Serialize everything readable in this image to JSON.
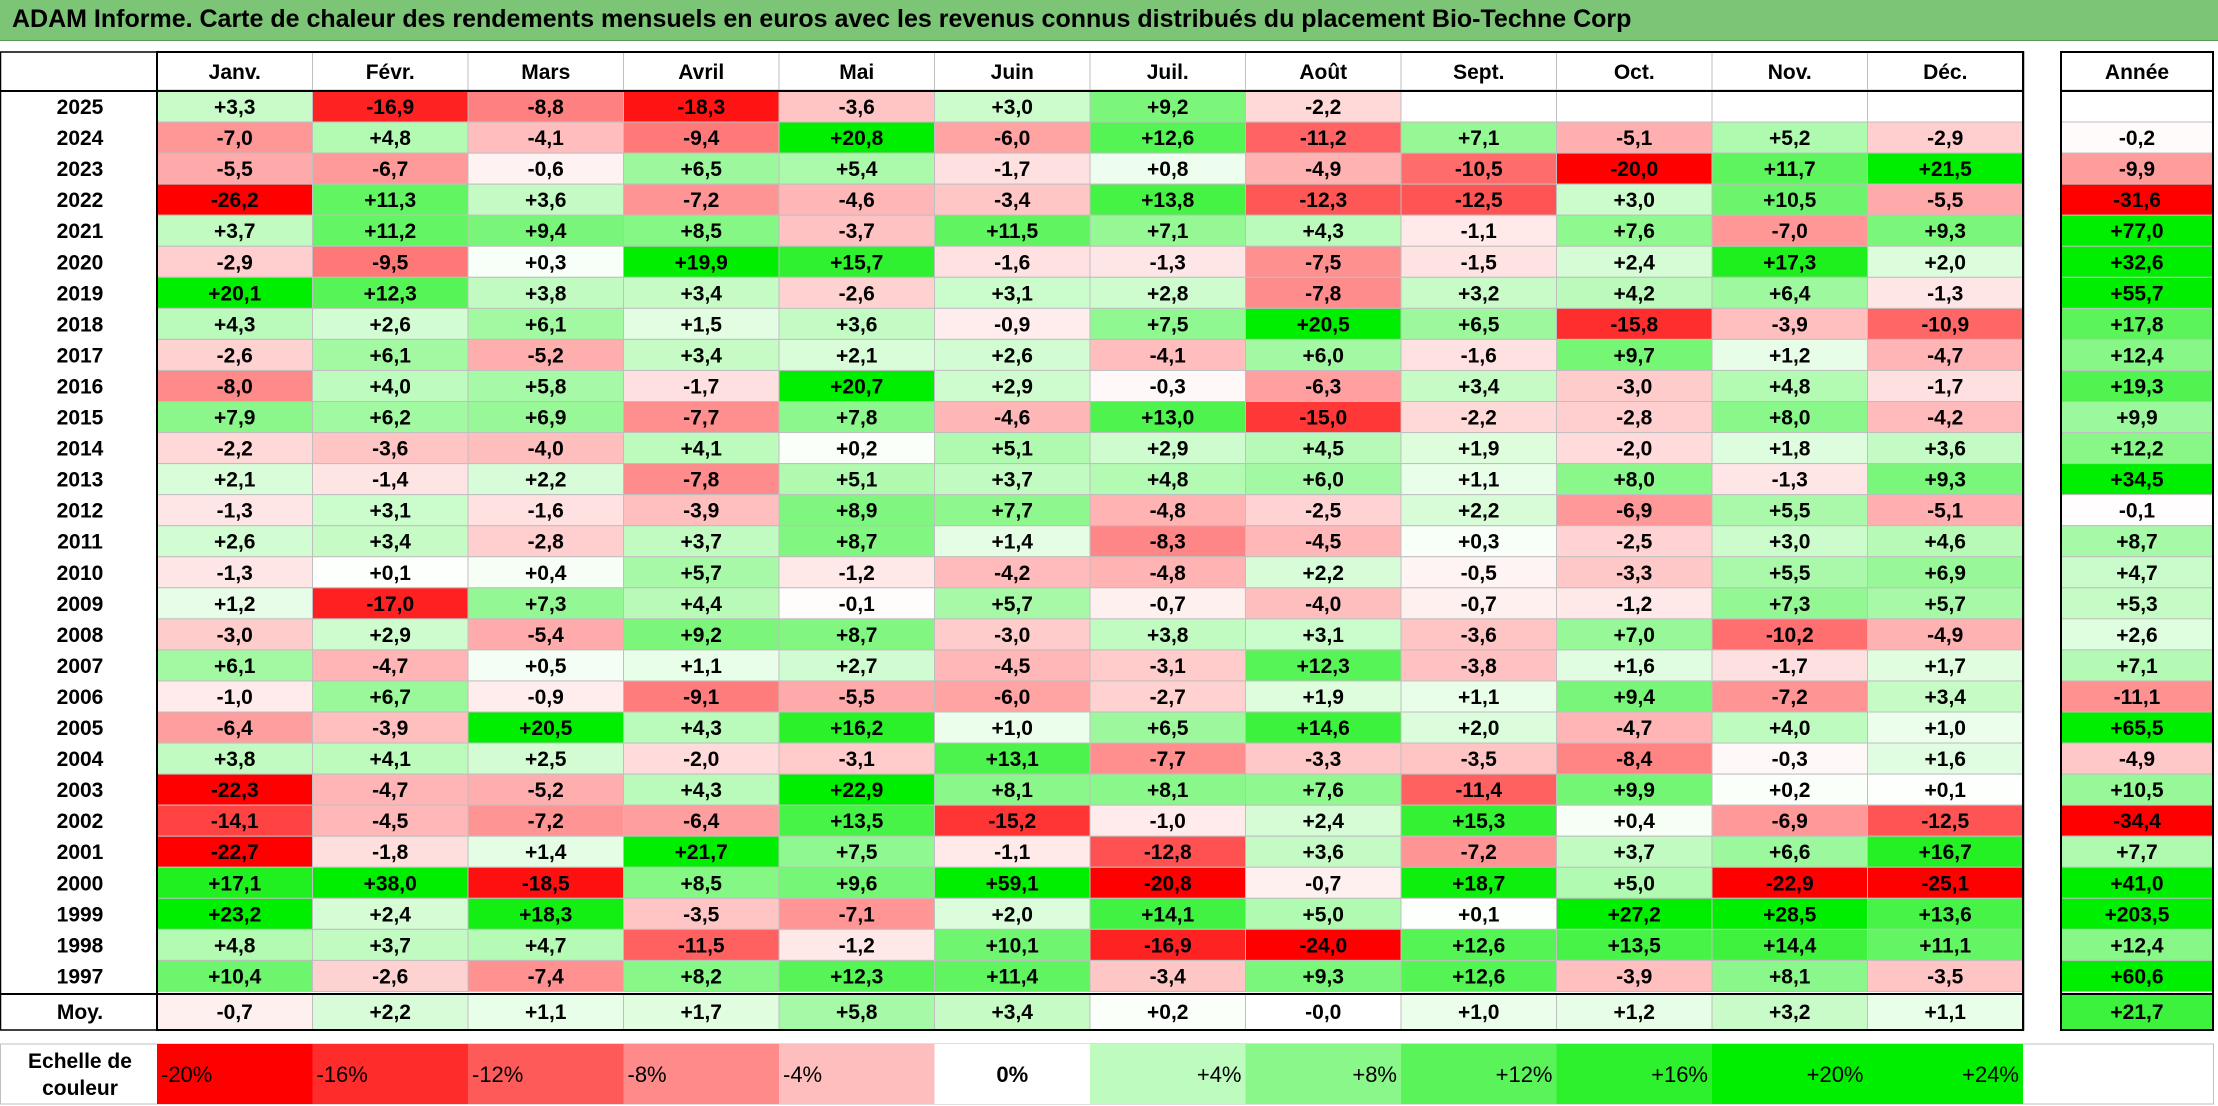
{
  "title": "ADAM Informe. Carte de chaleur des rendements mensuels en euros avec les revenus connus distribués du placement Bio-Techne Corp",
  "chart_data": {
    "type": "heatmap",
    "title": "ADAM Informe. Carte de chaleur des rendements mensuels en euros avec les revenus connus distribués du placement Bio-Techne Corp",
    "months": [
      "Janv.",
      "Févr.",
      "Mars",
      "Avril",
      "Mai",
      "Juin",
      "Juil.",
      "Août",
      "Sept.",
      "Oct.",
      "Nov.",
      "Déc."
    ],
    "annual_header": "Année",
    "rows": [
      {
        "year": "2025",
        "values": [
          3.3,
          -16.9,
          -8.8,
          -18.3,
          -3.6,
          3.0,
          9.2,
          -2.2,
          null,
          null,
          null,
          null
        ],
        "annual": null
      },
      {
        "year": "2024",
        "values": [
          -7.0,
          4.8,
          -4.1,
          -9.4,
          20.8,
          -6.0,
          12.6,
          -11.2,
          7.1,
          -5.1,
          5.2,
          -2.9
        ],
        "annual": -0.2
      },
      {
        "year": "2023",
        "values": [
          -5.5,
          -6.7,
          -0.6,
          6.5,
          5.4,
          -1.7,
          0.8,
          -4.9,
          -10.5,
          -20.0,
          11.7,
          21.5
        ],
        "annual": -9.9
      },
      {
        "year": "2022",
        "values": [
          -26.2,
          11.3,
          3.6,
          -7.2,
          -4.6,
          -3.4,
          13.8,
          -12.3,
          -12.5,
          3.0,
          10.5,
          -5.5
        ],
        "annual": -31.6
      },
      {
        "year": "2021",
        "values": [
          3.7,
          11.2,
          9.4,
          8.5,
          -3.7,
          11.5,
          7.1,
          4.3,
          -1.1,
          7.6,
          -7.0,
          9.3
        ],
        "annual": 77.0
      },
      {
        "year": "2020",
        "values": [
          -2.9,
          -9.5,
          0.3,
          19.9,
          15.7,
          -1.6,
          -1.3,
          -7.5,
          -1.5,
          2.4,
          17.3,
          2.0
        ],
        "annual": 32.6
      },
      {
        "year": "2019",
        "values": [
          20.1,
          12.3,
          3.8,
          3.4,
          -2.6,
          3.1,
          2.8,
          -7.8,
          3.2,
          4.2,
          6.4,
          -1.3
        ],
        "annual": 55.7
      },
      {
        "year": "2018",
        "values": [
          4.3,
          2.6,
          6.1,
          1.5,
          3.6,
          -0.9,
          7.5,
          20.5,
          6.5,
          -15.8,
          -3.9,
          -10.9
        ],
        "annual": 17.8
      },
      {
        "year": "2017",
        "values": [
          -2.6,
          6.1,
          -5.2,
          3.4,
          2.1,
          2.6,
          -4.1,
          6.0,
          -1.6,
          9.7,
          1.2,
          -4.7
        ],
        "annual": 12.4
      },
      {
        "year": "2016",
        "values": [
          -8.0,
          4.0,
          5.8,
          -1.7,
          20.7,
          2.9,
          -0.3,
          -6.3,
          3.4,
          -3.0,
          4.8,
          -1.7
        ],
        "annual": 19.3
      },
      {
        "year": "2015",
        "values": [
          7.9,
          6.2,
          6.9,
          -7.7,
          7.8,
          -4.6,
          13.0,
          -15.0,
          -2.2,
          -2.8,
          8.0,
          -4.2
        ],
        "annual": 9.9
      },
      {
        "year": "2014",
        "values": [
          -2.2,
          -3.6,
          -4.0,
          4.1,
          0.2,
          5.1,
          2.9,
          4.5,
          1.9,
          -2.0,
          1.8,
          3.6
        ],
        "annual": 12.2
      },
      {
        "year": "2013",
        "values": [
          2.1,
          -1.4,
          2.2,
          -7.8,
          5.1,
          3.7,
          4.8,
          6.0,
          1.1,
          8.0,
          -1.3,
          9.3
        ],
        "annual": 34.5
      },
      {
        "year": "2012",
        "values": [
          -1.3,
          3.1,
          -1.6,
          -3.9,
          8.9,
          7.7,
          -4.8,
          -2.5,
          2.2,
          -6.9,
          5.5,
          -5.1
        ],
        "annual": -0.1
      },
      {
        "year": "2011",
        "values": [
          2.6,
          3.4,
          -2.8,
          3.7,
          8.7,
          1.4,
          -8.3,
          -4.5,
          0.3,
          -2.5,
          3.0,
          4.6
        ],
        "annual": 8.7
      },
      {
        "year": "2010",
        "values": [
          -1.3,
          0.1,
          0.4,
          5.7,
          -1.2,
          -4.2,
          -4.8,
          2.2,
          -0.5,
          -3.3,
          5.5,
          6.9
        ],
        "annual": 4.7
      },
      {
        "year": "2009",
        "values": [
          1.2,
          -17.0,
          7.3,
          4.4,
          -0.1,
          5.7,
          -0.7,
          -4.0,
          -0.7,
          -1.2,
          7.3,
          5.7
        ],
        "annual": 5.3
      },
      {
        "year": "2008",
        "values": [
          -3.0,
          2.9,
          -5.4,
          9.2,
          8.7,
          -3.0,
          3.8,
          3.1,
          -3.6,
          7.0,
          -10.2,
          -4.9
        ],
        "annual": 2.6
      },
      {
        "year": "2007",
        "values": [
          6.1,
          -4.7,
          0.5,
          1.1,
          2.7,
          -4.5,
          -3.1,
          12.3,
          -3.8,
          1.6,
          -1.7,
          1.7
        ],
        "annual": 7.1
      },
      {
        "year": "2006",
        "values": [
          -1.0,
          6.7,
          -0.9,
          -9.1,
          -5.5,
          -6.0,
          -2.7,
          1.9,
          1.1,
          9.4,
          -7.2,
          3.4
        ],
        "annual": -11.1
      },
      {
        "year": "2005",
        "values": [
          -6.4,
          -3.9,
          20.5,
          4.3,
          16.2,
          1.0,
          6.5,
          14.6,
          2.0,
          -4.7,
          4.0,
          1.0
        ],
        "annual": 65.5
      },
      {
        "year": "2004",
        "values": [
          3.8,
          4.1,
          2.5,
          -2.0,
          -3.1,
          13.1,
          -7.7,
          -3.3,
          -3.5,
          -8.4,
          -0.3,
          1.6
        ],
        "annual": -4.9
      },
      {
        "year": "2003",
        "values": [
          -22.3,
          -4.7,
          -5.2,
          4.3,
          22.9,
          8.1,
          8.1,
          7.6,
          -11.4,
          9.9,
          0.2,
          0.1
        ],
        "annual": 10.5
      },
      {
        "year": "2002",
        "values": [
          -14.1,
          -4.5,
          -7.2,
          -6.4,
          13.5,
          -15.2,
          -1.0,
          2.4,
          15.3,
          0.4,
          -6.9,
          -12.5
        ],
        "annual": -34.4
      },
      {
        "year": "2001",
        "values": [
          -22.7,
          -1.8,
          1.4,
          21.7,
          7.5,
          -1.1,
          -12.8,
          3.6,
          -7.2,
          3.7,
          6.6,
          16.7
        ],
        "annual": 7.7
      },
      {
        "year": "2000",
        "values": [
          17.1,
          38.0,
          -18.5,
          8.5,
          9.6,
          59.1,
          -20.8,
          -0.7,
          18.7,
          5.0,
          -22.9,
          -25.1
        ],
        "annual": 41.0
      },
      {
        "year": "1999",
        "values": [
          23.2,
          2.4,
          18.3,
          -3.5,
          -7.1,
          2.0,
          14.1,
          5.0,
          0.1,
          27.2,
          28.5,
          13.6
        ],
        "annual": 203.5
      },
      {
        "year": "1998",
        "values": [
          4.8,
          3.7,
          4.7,
          -11.5,
          -1.2,
          10.1,
          -16.9,
          -24.0,
          12.6,
          13.5,
          14.4,
          11.1
        ],
        "annual": 12.4
      },
      {
        "year": "1997",
        "values": [
          10.4,
          -2.6,
          -7.4,
          8.2,
          12.3,
          11.4,
          -3.4,
          9.3,
          12.6,
          -3.9,
          8.1,
          -3.5
        ],
        "annual": 60.6
      }
    ],
    "average": {
      "label": "Moy.",
      "values": [
        "-0,7",
        "+2,2",
        "+1,1",
        "+1,7",
        "+5,8",
        "+3,4",
        "+0,2",
        "-0,0",
        "+1,0",
        "+1,2",
        "+3,2",
        "+1,1"
      ],
      "value_numbers": [
        -0.7,
        2.2,
        1.1,
        1.7,
        5.8,
        3.4,
        0.2,
        -0.0,
        1.0,
        1.2,
        3.2,
        1.1
      ],
      "annual": "+21,7",
      "annual_number": 21.7
    },
    "scale": {
      "label_lines": [
        "Echelle de",
        "couleur"
      ],
      "items": [
        {
          "label": "-20%",
          "value": -20
        },
        {
          "label": "-16%",
          "value": -16
        },
        {
          "label": "-12%",
          "value": -12
        },
        {
          "label": "-8%",
          "value": -8
        },
        {
          "label": "-4%",
          "value": -4
        },
        {
          "label": "0%",
          "value": 0
        },
        {
          "label": "+4%",
          "value": 4
        },
        {
          "label": "+8%",
          "value": 8
        },
        {
          "label": "+12%",
          "value": 12
        },
        {
          "label": "+16%",
          "value": 16
        },
        {
          "label": "+20%",
          "value": 20
        },
        {
          "label": "+24%",
          "value": 24
        }
      ]
    },
    "colors": {
      "title_bar": "#7cc576",
      "negative_max": "#ff0000",
      "neutral": "#ffffff",
      "positive_max": "#00ee00",
      "grid": "#bfbfbf",
      "border": "#000000"
    }
  }
}
